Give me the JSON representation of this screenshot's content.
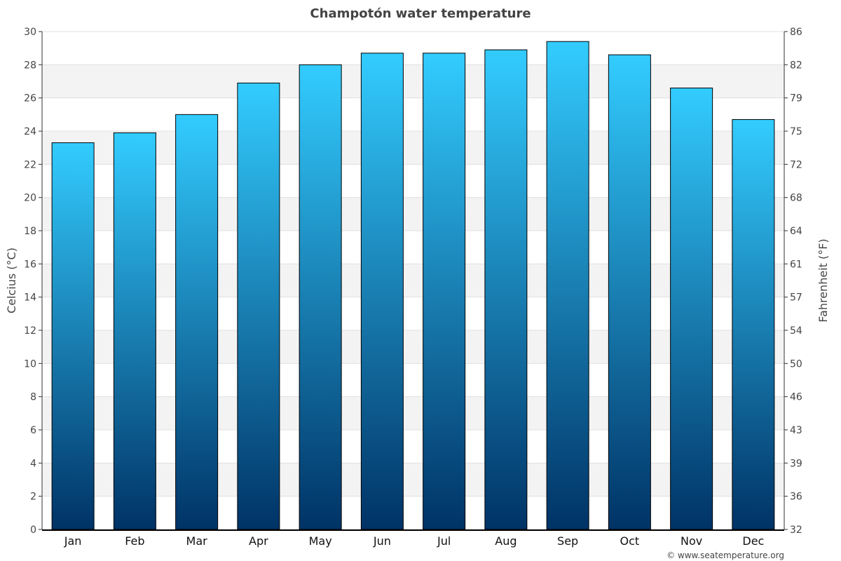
{
  "chart_data": {
    "type": "bar",
    "title": "Champotón water temperature",
    "categories": [
      "Jan",
      "Feb",
      "Mar",
      "Apr",
      "May",
      "Jun",
      "Jul",
      "Aug",
      "Sep",
      "Oct",
      "Nov",
      "Dec"
    ],
    "values": [
      23.3,
      23.9,
      25.0,
      26.9,
      28.0,
      28.7,
      28.7,
      28.9,
      29.4,
      28.6,
      26.6,
      24.7
    ],
    "ylabel": "Celcius (°C)",
    "y2label": "Fahrenheit (°F)",
    "ylim": [
      0,
      30
    ],
    "yticks": [
      0,
      2,
      4,
      6,
      8,
      10,
      12,
      14,
      16,
      18,
      20,
      22,
      24,
      26,
      28,
      30
    ],
    "y2ticks": [
      "32",
      "36",
      "39",
      "43",
      "46",
      "50",
      "54",
      "57",
      "61",
      "64",
      "68",
      "72",
      "75",
      "79",
      "82",
      "86"
    ],
    "grid": true,
    "bar_colors": {
      "top": "#33ccff",
      "bottom": "#003366"
    },
    "band_color": "#f3f3f3"
  },
  "credit": "© www.seatemperature.org"
}
